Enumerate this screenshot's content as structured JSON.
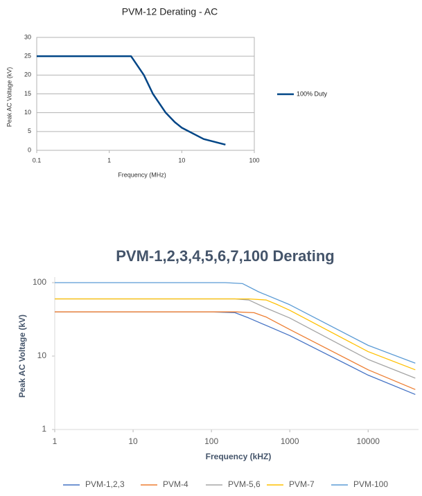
{
  "chart_data": [
    {
      "type": "line",
      "title": "PVM-12 Derating - AC",
      "x_label": "Frequency (MHz)",
      "y_label": "Peak AC Voltage (kV)",
      "xscale": "log",
      "yscale": "linear",
      "xlim": [
        0.1,
        100
      ],
      "ylim": [
        0,
        30
      ],
      "xticks": [
        0.1,
        1,
        10,
        100
      ],
      "yticks": [
        0,
        5,
        10,
        15,
        20,
        25,
        30
      ],
      "grid": true,
      "legend": "right",
      "x": [
        0.1,
        1,
        2,
        3,
        4,
        6,
        8,
        10,
        20,
        40
      ],
      "series": [
        {
          "name": "100% Duty",
          "color": "#004586",
          "values": [
            25,
            25,
            25,
            20,
            15,
            10,
            7.5,
            6,
            3,
            1.5
          ]
        }
      ]
    },
    {
      "type": "line",
      "title": "PVM-1,2,3,4,5,6,7,100 Derating",
      "x_label": "Frequency (kHZ)",
      "y_label": "Peak AC Voltage (kV)",
      "xscale": "log",
      "yscale": "log",
      "xlim": [
        1,
        44000
      ],
      "ylim": [
        1,
        100
      ],
      "xticks": [
        1,
        10,
        100,
        1000,
        10000
      ],
      "yticks": [
        1,
        10,
        100
      ],
      "grid": false,
      "legend": "bottom",
      "series": [
        {
          "name": "PVM-1,2,3",
          "color": "#4472c4",
          "x": [
            1,
            100,
            200,
            300,
            1000,
            10000,
            40000
          ],
          "values": [
            40,
            40,
            39,
            33,
            19,
            5.5,
            3
          ]
        },
        {
          "name": "PVM-4",
          "color": "#ed7d31",
          "x": [
            1,
            200,
            350,
            500,
            1000,
            10000,
            40000
          ],
          "values": [
            40,
            40,
            39,
            34,
            23,
            6.5,
            3.5
          ]
        },
        {
          "name": "PVM-5,6",
          "color": "#a5a5a5",
          "x": [
            1,
            200,
            300,
            500,
            1000,
            10000,
            40000
          ],
          "values": [
            60,
            60,
            58,
            45,
            33,
            9,
            5
          ]
        },
        {
          "name": "PVM-7",
          "color": "#ffc000",
          "x": [
            1,
            300,
            500,
            700,
            1000,
            10000,
            40000
          ],
          "values": [
            60,
            60,
            58,
            50,
            42,
            11.5,
            6.5
          ]
        },
        {
          "name": "PVM-100",
          "color": "#5b9bd5",
          "x": [
            1,
            150,
            250,
            400,
            1000,
            10000,
            40000
          ],
          "values": [
            100,
            100,
            97,
            75,
            50,
            14,
            8
          ]
        }
      ]
    }
  ]
}
